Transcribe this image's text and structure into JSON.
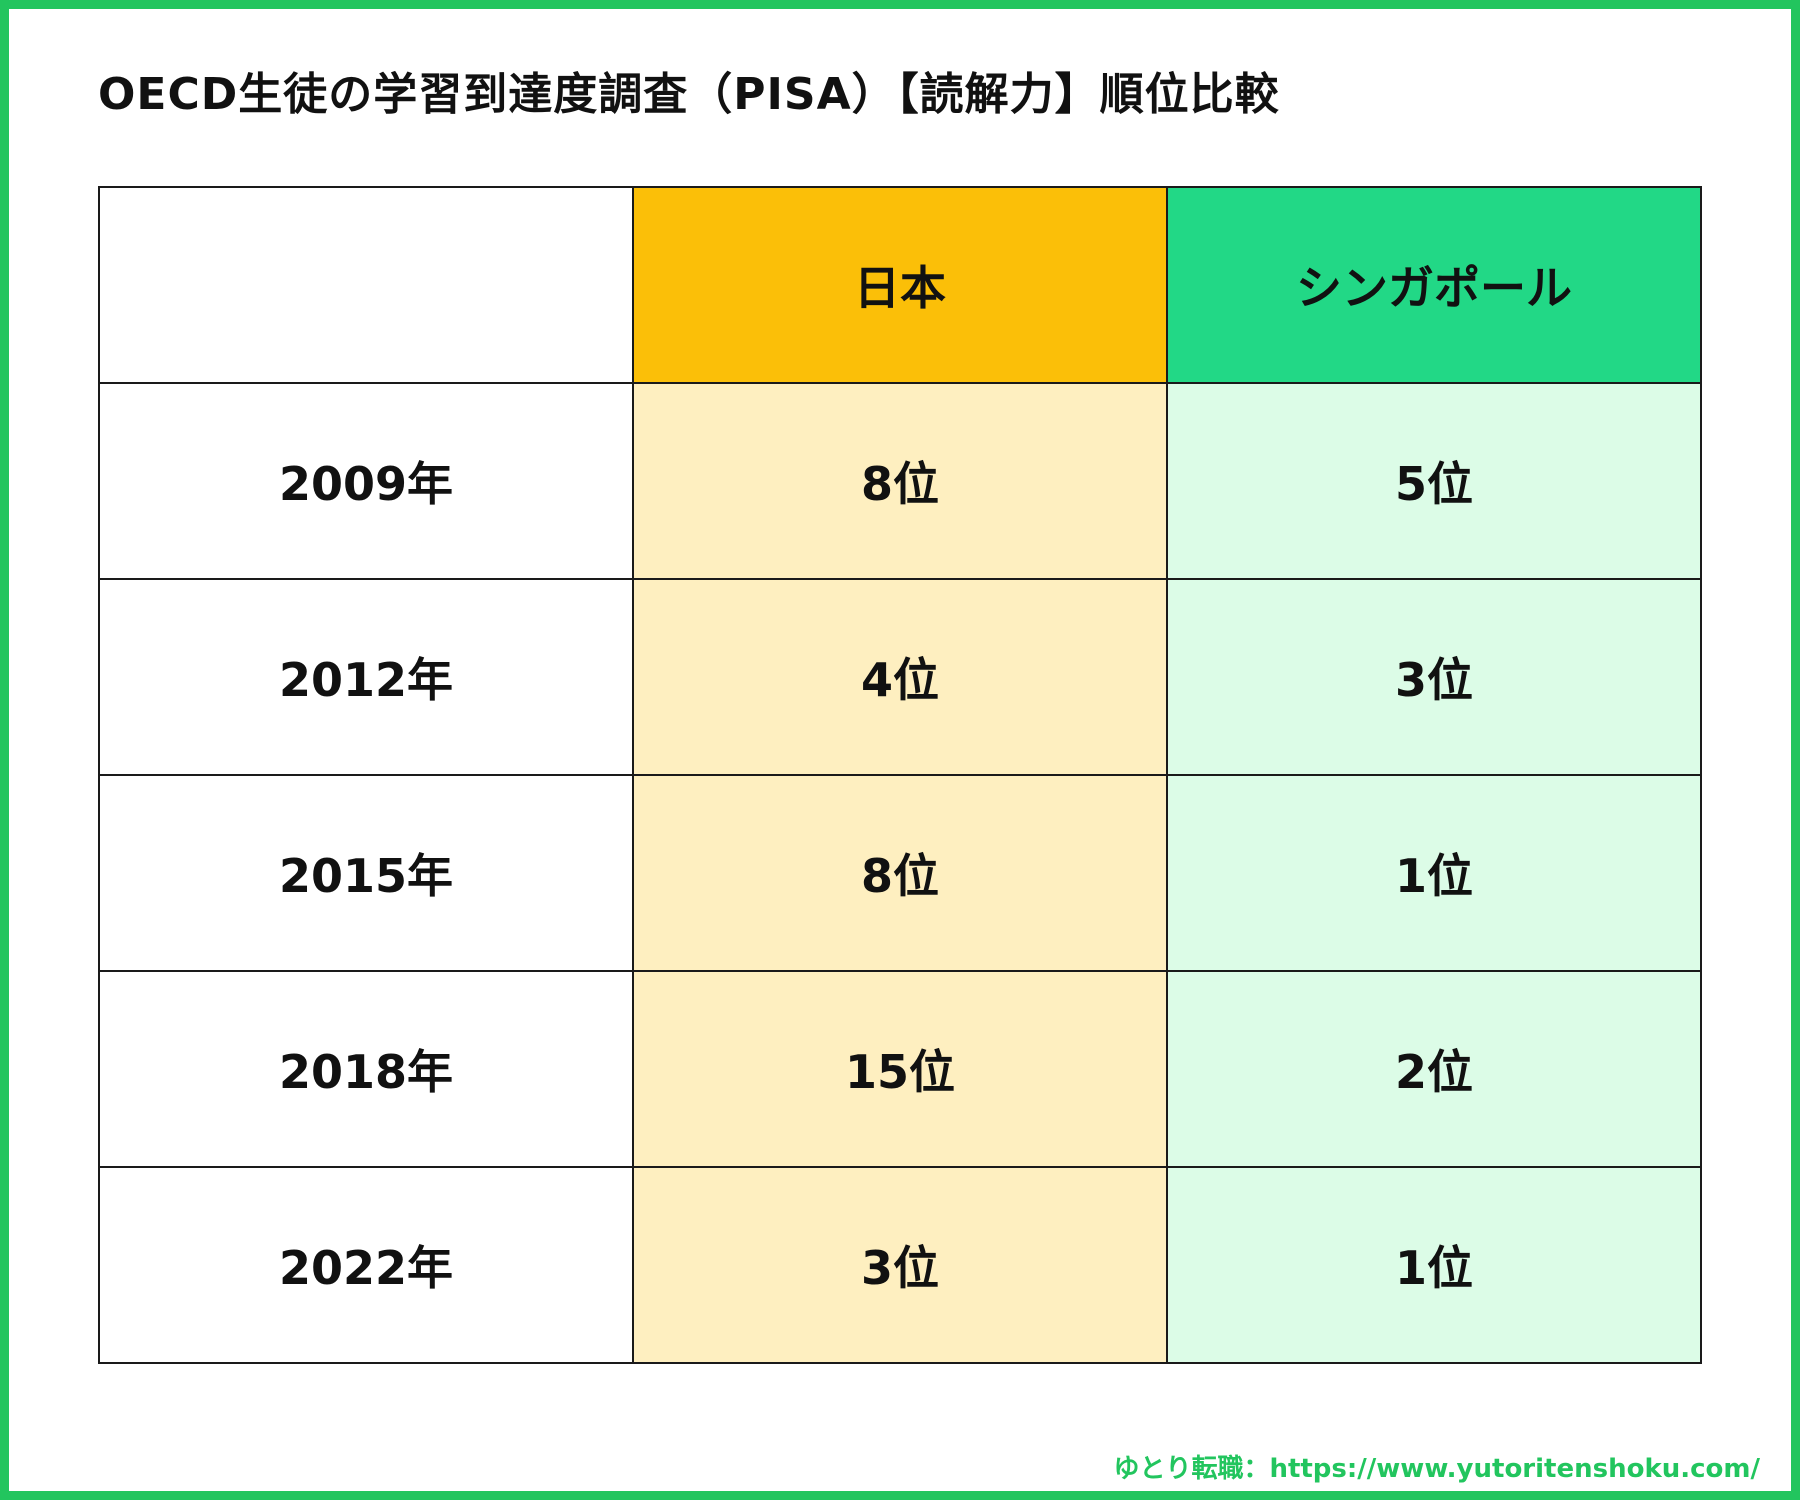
{
  "title": "OECD生徒の学習到達度調査（PISA）【読解力】順位比較",
  "table": {
    "headers": [
      "",
      "日本",
      "シンガポール"
    ],
    "rows": [
      {
        "year": "2009年",
        "japan": "8位",
        "singapore": "5位"
      },
      {
        "year": "2012年",
        "japan": "4位",
        "singapore": "3位"
      },
      {
        "year": "2015年",
        "japan": "8位",
        "singapore": "1位"
      },
      {
        "year": "2018年",
        "japan": "15位",
        "singapore": "2位"
      },
      {
        "year": "2022年",
        "japan": "3位",
        "singapore": "1位"
      }
    ]
  },
  "footer": "ゆとり転職：https://www.yutoritenshoku.com/",
  "colors": {
    "frame": "#22c55e",
    "japan_header": "#fbbf08",
    "japan_cell": "#feefc0",
    "singapore_header": "#22d886",
    "singapore_cell": "#dcfce7",
    "footer_text": "#22c55e"
  }
}
